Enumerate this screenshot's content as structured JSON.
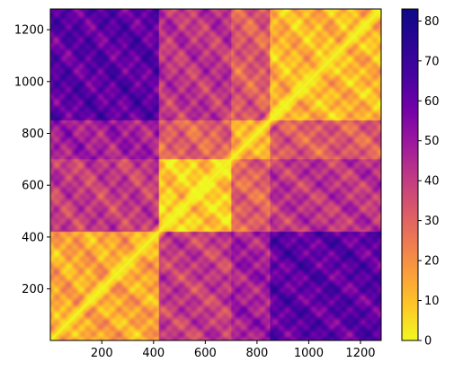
{
  "chart_data": {
    "type": "heatmap",
    "title": "",
    "xlabel": "",
    "ylabel": "",
    "colormap": "plasma_r",
    "xlim": [
      1,
      1280
    ],
    "ylim": [
      1,
      1280
    ],
    "x_ticks": [
      200,
      400,
      600,
      800,
      1000,
      1200
    ],
    "y_ticks": [
      200,
      400,
      600,
      800,
      1000,
      1200
    ],
    "colorbar": {
      "range": [
        0,
        83
      ],
      "ticks": [
        0,
        10,
        20,
        30,
        40,
        50,
        60,
        70,
        80
      ]
    },
    "matrix_description": "symmetric pairwise distance matrix, zero along the main diagonal",
    "block_boundaries": [
      420,
      700,
      850
    ],
    "block_levels": [
      [
        15,
        40,
        48,
        62
      ],
      [
        40,
        8,
        30,
        42
      ],
      [
        48,
        30,
        15,
        32
      ],
      [
        62,
        42,
        32,
        12
      ]
    ]
  },
  "colors": {
    "background": "#ffffff",
    "axes_frame": "#000000",
    "diagonal": "#f0f921",
    "cmap_low": "#f0f921",
    "cmap_high": "#0d0887"
  }
}
